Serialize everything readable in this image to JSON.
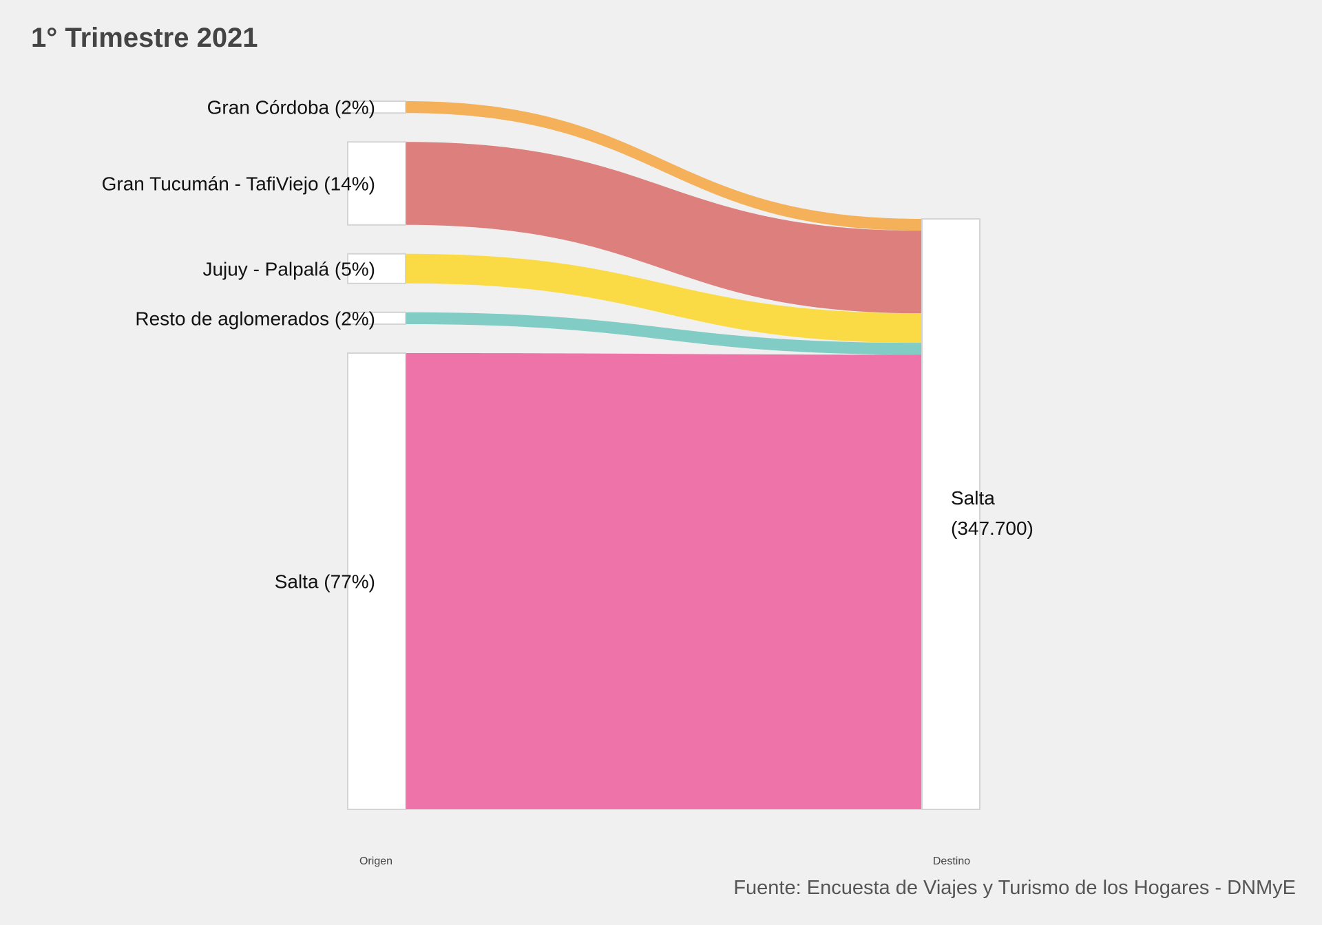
{
  "chart_data": {
    "type": "sankey",
    "title": "1° Trimestre 2021",
    "caption": "Fuente: Encuesta de Viajes y Turismo de los Hogares - DNMyE",
    "axis_labels": [
      "Origen",
      "Destino"
    ],
    "flows": [
      {
        "source": "Gran Córdoba (2%)",
        "percent": 2,
        "color": "#f5b05a"
      },
      {
        "source": "Gran Tucumán - TafiViejo (14%)",
        "percent": 14,
        "color": "#dc7f7d"
      },
      {
        "source": "Jujuy - Palpalá (5%)",
        "percent": 5,
        "color": "#fadb46"
      },
      {
        "source": "Resto de aglomerados (2%)",
        "percent": 2,
        "color": "#81ccc4"
      },
      {
        "source": "Salta (77%)",
        "percent": 77,
        "color": "#ee73a9"
      }
    ],
    "target": {
      "name": "Salta",
      "value": "(347.700)"
    },
    "colors": {
      "background": "#f0f0f0",
      "node_fill": "#ffffff",
      "node_border": "#d4d4d4",
      "title": "#444444",
      "caption": "#555555"
    }
  }
}
